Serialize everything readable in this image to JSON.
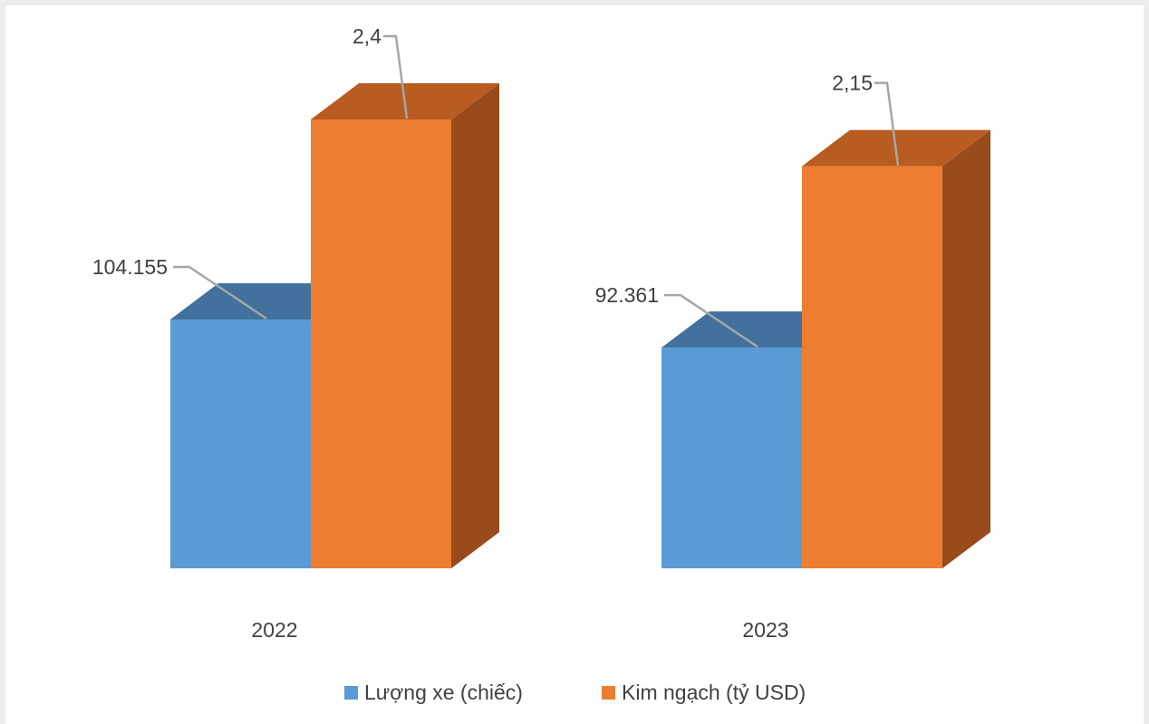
{
  "chart_data": {
    "type": "bar",
    "style": "3d-clustered-column",
    "categories": [
      "2022",
      "2023"
    ],
    "series": [
      {
        "name": "Lượng xe (chiếc)",
        "values": [
          104155,
          92361
        ],
        "labels": [
          "104.155",
          "92.361"
        ],
        "color": "#5b9bd5",
        "top_color": "#41719c"
      },
      {
        "name": "Kim ngạch (tỷ USD)",
        "values": [
          2.4,
          2.15
        ],
        "labels": [
          "2,4",
          "2,15"
        ],
        "color": "#ed7d31",
        "top_color": "#b85c21",
        "side_color": "#9a4b1b"
      }
    ],
    "title": "",
    "xlabel": "",
    "ylabel": "",
    "grid": false,
    "legend_position": "bottom"
  }
}
